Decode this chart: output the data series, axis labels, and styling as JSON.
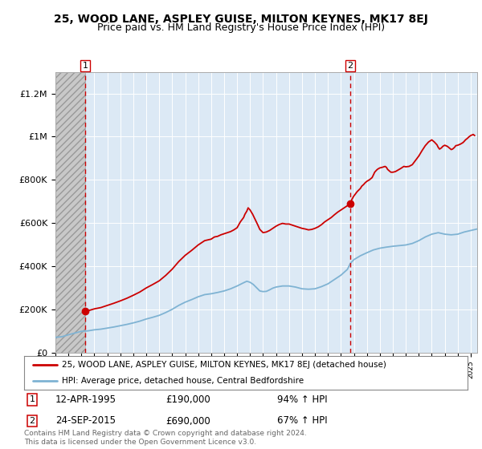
{
  "title": "25, WOOD LANE, ASPLEY GUISE, MILTON KEYNES, MK17 8EJ",
  "subtitle": "Price paid vs. HM Land Registry's House Price Index (HPI)",
  "title_fontsize": 10,
  "subtitle_fontsize": 9,
  "ylim": [
    0,
    1300000
  ],
  "xlim_start": 1993.0,
  "xlim_end": 2025.5,
  "yticks": [
    0,
    200000,
    400000,
    600000,
    800000,
    1000000,
    1200000
  ],
  "ytick_labels": [
    "£0",
    "£200K",
    "£400K",
    "£600K",
    "£800K",
    "£1M",
    "£1.2M"
  ],
  "xticks": [
    1993,
    1994,
    1995,
    1996,
    1997,
    1998,
    1999,
    2000,
    2001,
    2002,
    2003,
    2004,
    2005,
    2006,
    2007,
    2008,
    2009,
    2010,
    2011,
    2012,
    2013,
    2014,
    2015,
    2016,
    2017,
    2018,
    2019,
    2020,
    2021,
    2022,
    2023,
    2024,
    2025
  ],
  "sale1_date": 1995.28,
  "sale1_price": 190000,
  "sale2_date": 2015.73,
  "sale2_price": 690000,
  "red_line_color": "#cc0000",
  "blue_line_color": "#7fb3d3",
  "dashed_line_color": "#cc0000",
  "bg_color": "#dce9f5",
  "hatch_bg_color": "#c8c8c8",
  "legend_label_red": "25, WOOD LANE, ASPLEY GUISE, MILTON KEYNES, MK17 8EJ (detached house)",
  "legend_label_blue": "HPI: Average price, detached house, Central Bedfordshire",
  "sale1_info": "12-APR-1995",
  "sale1_amount": "£190,000",
  "sale1_pct": "94% ↑ HPI",
  "sale2_info": "24-SEP-2015",
  "sale2_amount": "£690,000",
  "sale2_pct": "67% ↑ HPI",
  "footer_text": "Contains HM Land Registry data © Crown copyright and database right 2024.\nThis data is licensed under the Open Government Licence v3.0."
}
